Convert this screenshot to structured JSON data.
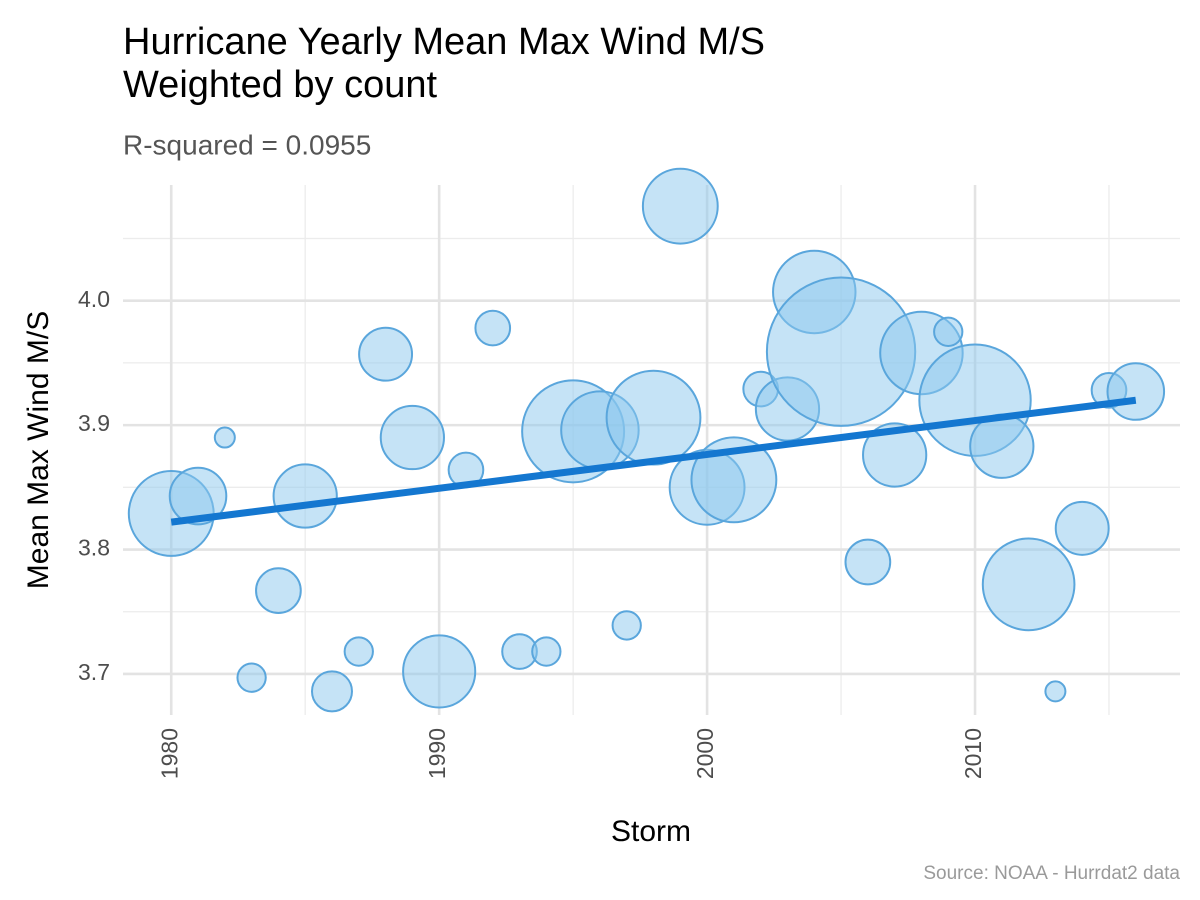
{
  "chart_data": {
    "type": "bubble",
    "title": [
      "Hurricane Yearly Mean Max Wind M/S",
      "Weighted by count"
    ],
    "subtitle": "R-squared =  0.0955",
    "caption": "Source: NOAA - Hurrdat2 data",
    "x_label": "Storm",
    "y_label": "Mean Max Wind M/S",
    "x": [
      1980,
      1981,
      1982,
      1983,
      1984,
      1985,
      1986,
      1987,
      1988,
      1989,
      1990,
      1991,
      1992,
      1993,
      1994,
      1995,
      1996,
      1997,
      1998,
      1999,
      2000,
      2001,
      2002,
      2003,
      2004,
      2005,
      2006,
      2007,
      2008,
      2009,
      2010,
      2011,
      2012,
      2013,
      2014,
      2015,
      2016
    ],
    "series": [
      {
        "color": "#8cc8ee",
        "stroke": "#5aa6dc",
        "values": [
          3.829,
          3.843,
          3.89,
          3.697,
          3.767,
          3.843,
          3.686,
          3.718,
          3.957,
          3.89,
          3.702,
          3.864,
          3.978,
          3.718,
          3.718,
          3.895,
          3.896,
          3.739,
          3.906,
          4.076,
          3.85,
          3.856,
          3.929,
          3.913,
          4.007,
          3.959,
          3.79,
          3.876,
          3.958,
          3.975,
          3.92,
          3.883,
          3.772,
          3.686,
          3.817,
          3.928,
          3.927
        ],
        "sizes": [
          18,
          8,
          1,
          2,
          5,
          10,
          4,
          2,
          7,
          10,
          13,
          3,
          3,
          3,
          2,
          26,
          15,
          2,
          22,
          14,
          14,
          18,
          3,
          10,
          17,
          55,
          5,
          10,
          17,
          2,
          31,
          10,
          21,
          1,
          7,
          3,
          8
        ]
      }
    ],
    "fit_line": {
      "x": [
        1980,
        2016
      ],
      "values": [
        3.822,
        3.92
      ],
      "color": "#1477d0"
    },
    "xlim": [
      1978.2,
      2017.65
    ],
    "ylim": [
      3.667,
      4.093
    ],
    "xticks": [
      1980,
      1990,
      2000,
      2010
    ],
    "yticks": [
      3.7,
      3.8,
      3.9,
      {
        "value": 4,
        "label": "4.0"
      }
    ],
    "grid": true
  }
}
